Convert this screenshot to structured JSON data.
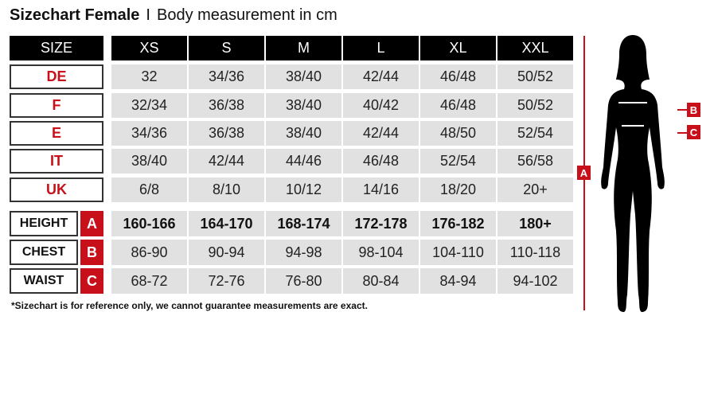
{
  "title": {
    "main": "Sizechart Female",
    "separator": "I",
    "subtitle": "Body measurement in cm"
  },
  "header": {
    "label": "SIZE",
    "sizes": [
      "XS",
      "S",
      "M",
      "L",
      "XL",
      "XXL"
    ]
  },
  "conversion_rows": [
    {
      "label": "DE",
      "values": [
        "32",
        "34/36",
        "38/40",
        "42/44",
        "46/48",
        "50/52"
      ]
    },
    {
      "label": "F",
      "values": [
        "32/34",
        "36/38",
        "38/40",
        "40/42",
        "46/48",
        "50/52"
      ]
    },
    {
      "label": "E",
      "values": [
        "34/36",
        "36/38",
        "38/40",
        "42/44",
        "48/50",
        "52/54"
      ]
    },
    {
      "label": "IT",
      "values": [
        "38/40",
        "42/44",
        "44/46",
        "46/48",
        "52/54",
        "56/58"
      ]
    },
    {
      "label": "UK",
      "values": [
        "6/8",
        "8/10",
        "10/12",
        "14/16",
        "18/20",
        "20+"
      ]
    }
  ],
  "measurement_rows": [
    {
      "label": "HEIGHT",
      "letter": "A",
      "values": [
        "160-166",
        "164-170",
        "168-174",
        "172-178",
        "176-182",
        "180+"
      ]
    },
    {
      "label": "CHEST",
      "letter": "B",
      "values": [
        "86-90",
        "90-94",
        "94-98",
        "98-104",
        "104-110",
        "110-118"
      ]
    },
    {
      "label": "WAIST",
      "letter": "C",
      "values": [
        "68-72",
        "72-76",
        "76-80",
        "80-84",
        "84-94",
        "94-102"
      ]
    }
  ],
  "footnote": "*Sizechart is for reference only, we cannot guarantee measurements are exact.",
  "figure": {
    "height_marker": "A",
    "chest_marker": "B",
    "waist_marker": "C"
  },
  "colors": {
    "accent": "#c8101a",
    "header": "#000000",
    "cell": "#e1e1e1"
  }
}
